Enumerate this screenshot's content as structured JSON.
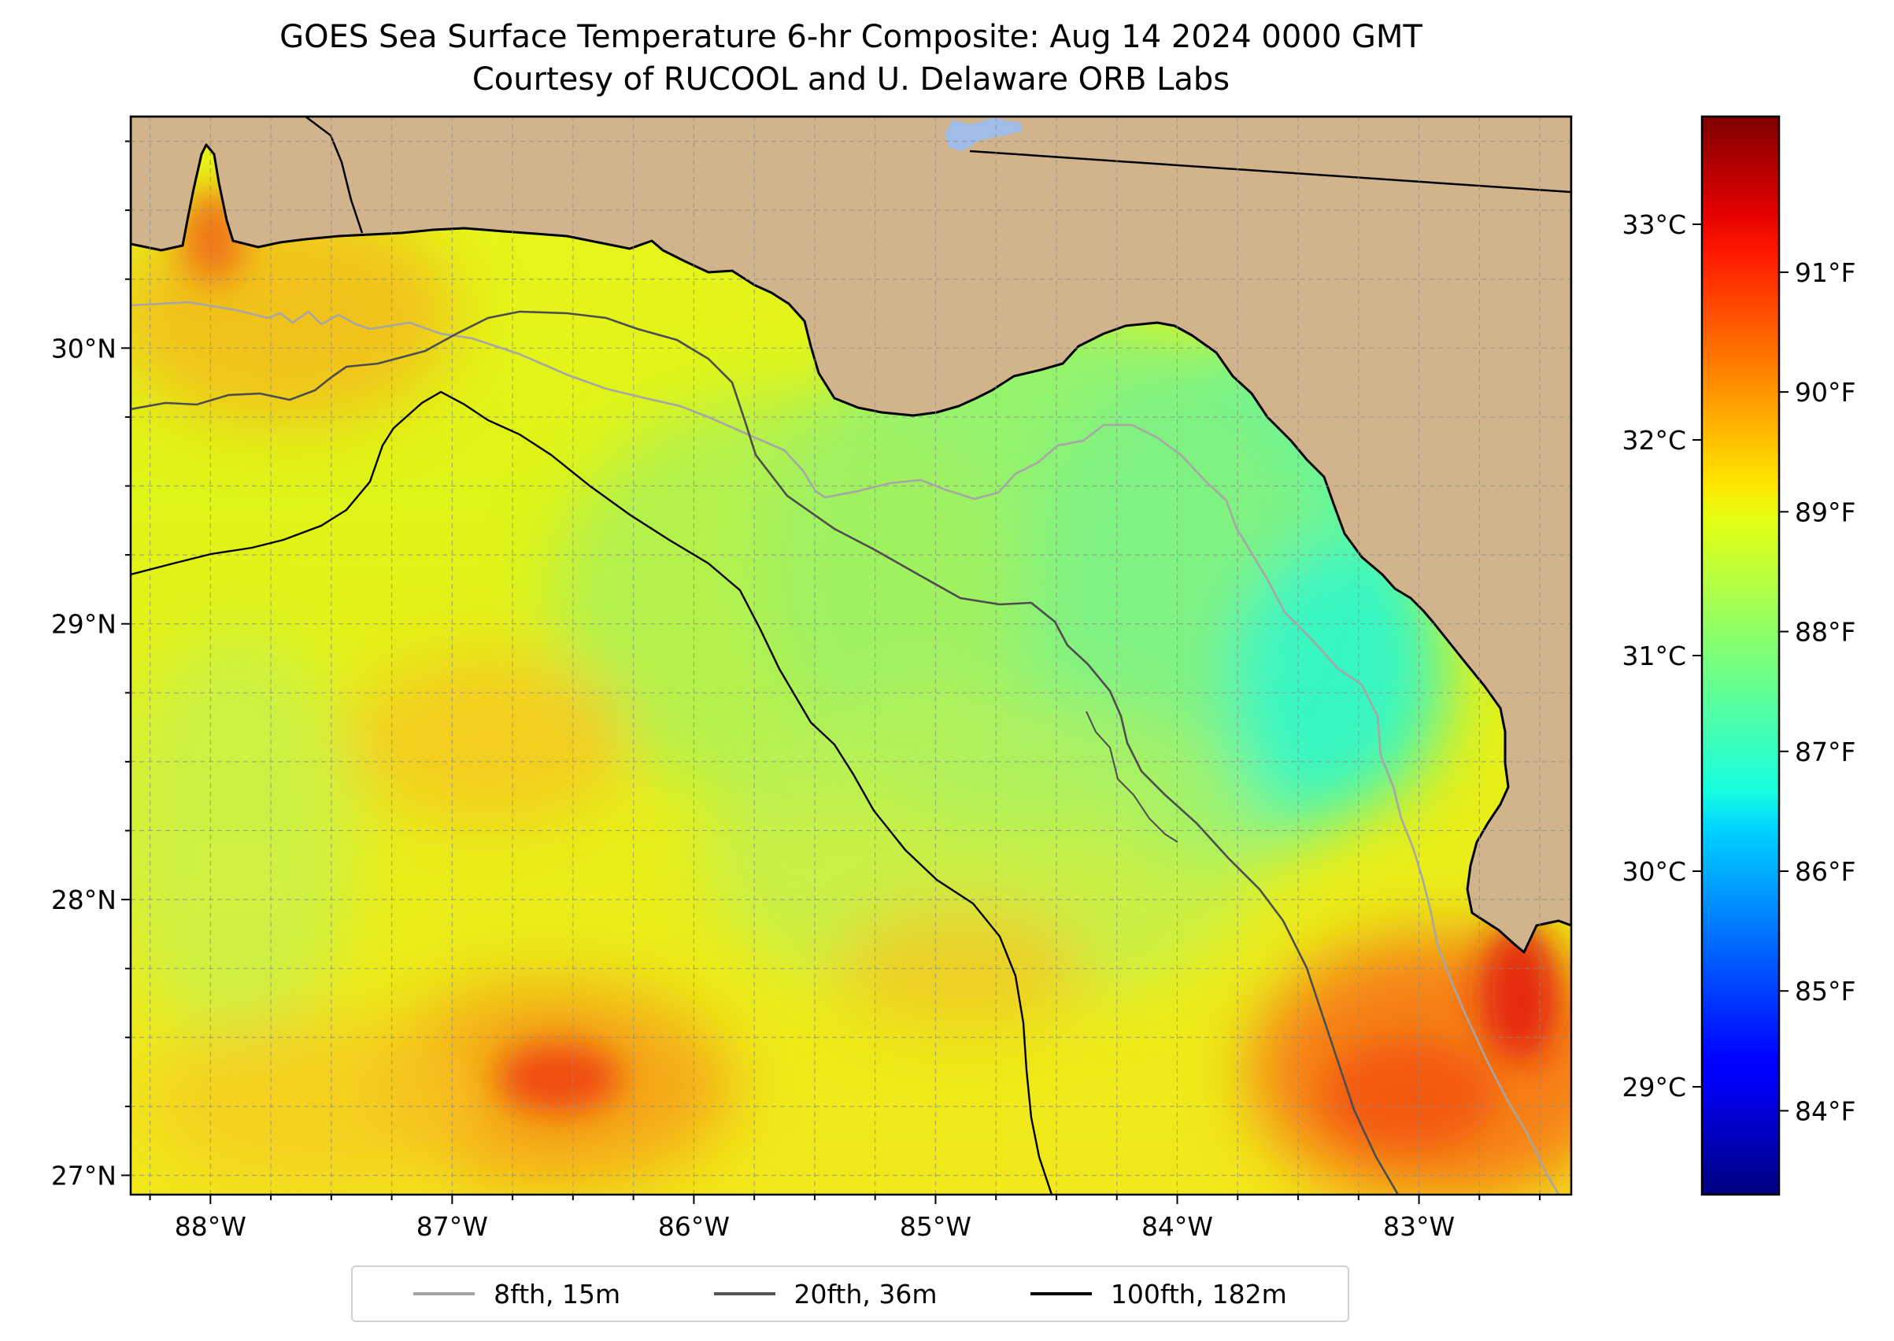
{
  "title": {
    "line1": "GOES Sea Surface Temperature 6-hr Composite: Aug 14 2024 0000 GMT",
    "line2": "Courtesy of RUCOOL and U. Delaware ORB Labs"
  },
  "map": {
    "lon_range": [
      -88.33,
      -82.37
    ],
    "lat_range": [
      26.93,
      30.84
    ],
    "lon_ticks": [
      {
        "value": -88,
        "label": "88°W"
      },
      {
        "value": -87,
        "label": "87°W"
      },
      {
        "value": -86,
        "label": "86°W"
      },
      {
        "value": -85,
        "label": "85°W"
      },
      {
        "value": -84,
        "label": "84°W"
      },
      {
        "value": -83,
        "label": "83°W"
      }
    ],
    "lat_ticks": [
      {
        "value": 27,
        "label": "27°N"
      },
      {
        "value": 28,
        "label": "28°N"
      },
      {
        "value": 29,
        "label": "29°N"
      },
      {
        "value": 30,
        "label": "30°N"
      }
    ],
    "colors": {
      "land": "#d2b48c",
      "coast": "#000000",
      "grid": "#8c8c8c",
      "lake": "#9fbde6"
    }
  },
  "colorbar": {
    "colormap": "jet",
    "celsius_range": [
      28.5,
      33.5
    ],
    "celsius_ticks": [
      {
        "value": 29,
        "label": "29°C"
      },
      {
        "value": 30,
        "label": "30°C"
      },
      {
        "value": 31,
        "label": "31°C"
      },
      {
        "value": 32,
        "label": "32°C"
      },
      {
        "value": 33,
        "label": "33°C"
      }
    ],
    "fahrenheit_ticks": [
      {
        "value": 84,
        "label": "84°F"
      },
      {
        "value": 85,
        "label": "85°F"
      },
      {
        "value": 86,
        "label": "86°F"
      },
      {
        "value": 87,
        "label": "87°F"
      },
      {
        "value": 88,
        "label": "88°F"
      },
      {
        "value": 89,
        "label": "89°F"
      },
      {
        "value": 90,
        "label": "90°F"
      },
      {
        "value": 91,
        "label": "91°F"
      }
    ]
  },
  "legend": {
    "items": [
      {
        "label": "8fth, 15m",
        "color": "#a6a6a6"
      },
      {
        "label": "20fth, 36m",
        "color": "#555555"
      },
      {
        "label": "100fth, 182m",
        "color": "#000000"
      }
    ]
  }
}
